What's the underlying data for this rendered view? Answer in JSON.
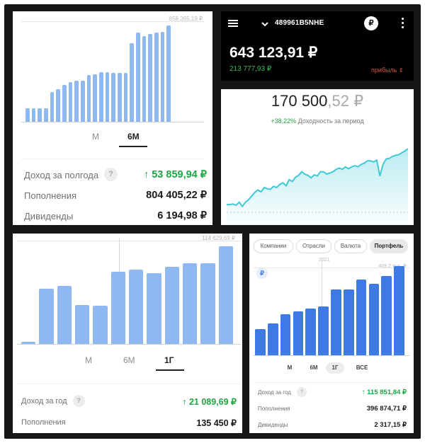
{
  "colors": {
    "bar": "#8fb8f2",
    "bar_dark": "#3d7ae4",
    "green": "#21a443",
    "line": "#3ec8d8",
    "profit_red": "#e0523f"
  },
  "panel1": {
    "max_label": "858 265,19 ₽",
    "periods": [
      "М",
      "6М"
    ],
    "active_period": "6М",
    "rows": [
      {
        "label": "Доход за полгода",
        "value": "53 859,94 ₽",
        "help": true,
        "green": true
      },
      {
        "label": "Пополнения",
        "value": "804 405,22 ₽"
      },
      {
        "label": "Дивиденды",
        "value": "6 194,98 ₽"
      }
    ]
  },
  "panel2": {
    "menu_icon": "hamburger-icon",
    "dropdown_icon": "chevron-down-icon",
    "account": "489961B5NHE",
    "currency_icon": "ruble-icon",
    "more_icon": "dots-vertical-icon",
    "balance": "643 123,91 ₽",
    "profit_value": "213 777,93 ₽",
    "profit_label": "прибыль",
    "profit_toggle_icon": "swap-vertical-icon"
  },
  "panel3": {
    "amount_main": "170 500",
    "amount_fraction": ",52 ₽",
    "yield_value": "+38,22%",
    "yield_label": "Доходность за период"
  },
  "panel4": {
    "max_label": "114 629,69 ₽",
    "periods": [
      "М",
      "6М",
      "1Г"
    ],
    "active_period": "1Г",
    "rows": [
      {
        "label": "Доход за год",
        "value": "21 089,69 ₽",
        "help": true,
        "green": true
      },
      {
        "label": "Пополнения",
        "value": "135 450 ₽"
      }
    ]
  },
  "panel5": {
    "chips": [
      "Компании",
      "Отрасли",
      "Валюта",
      "Портфель"
    ],
    "active_chip": "Портфель",
    "currency_icon": "ruble-icon",
    "year_label": "2021",
    "max_label": "409,2 тыс. ₽",
    "periods": [
      "М",
      "6М",
      "1Г",
      "ВСЕ"
    ],
    "active_period": "1Г",
    "rows": [
      {
        "label": "Доход за год",
        "value": "115 851,84 ₽",
        "help": true,
        "green": true
      },
      {
        "label": "Пополнения",
        "value": "396 874,71 ₽"
      },
      {
        "label": "Дивиденды",
        "value": "2 317,15 ₽"
      }
    ]
  },
  "chart_data": [
    {
      "type": "bar",
      "series": [
        {
          "values": [
            120,
            120,
            120,
            120,
            265,
            290,
            325,
            355,
            365,
            365,
            415,
            420,
            440,
            440,
            435,
            435,
            435,
            700,
            790,
            760,
            780,
            795,
            800,
            858
          ]
        }
      ],
      "ylim": [
        0,
        880
      ],
      "annotation": "858 265,19 ₽"
    },
    {
      "type": "line",
      "series": [
        {
          "values": [
            0.08,
            0.08,
            0.09,
            0.07,
            0.12,
            0.05,
            0.12,
            0.16,
            0.22,
            0.28,
            0.32,
            0.29,
            0.36,
            0.34,
            0.33,
            0.38,
            0.36,
            0.41,
            0.44,
            0.39,
            0.49,
            0.46,
            0.53,
            0.56,
            0.62,
            0.58,
            0.56,
            0.52,
            0.57,
            0.55,
            0.62,
            0.62,
            0.58,
            0.6,
            0.62,
            0.66,
            0.68,
            0.66,
            0.7,
            0.67,
            0.7,
            0.72,
            0.7,
            0.74,
            0.76,
            0.8,
            0.8,
            0.78,
            0.81,
            0.55,
            0.74,
            0.83,
            0.84,
            0.87,
            0.89,
            0.9,
            0.93,
            0.96,
            1.0
          ]
        }
      ]
    },
    {
      "type": "bar",
      "series": [
        {
          "values": [
            2,
            52,
            55,
            37,
            36,
            68,
            70,
            67,
            73,
            76,
            76,
            92
          ]
        }
      ],
      "ylim": [
        0,
        100
      ],
      "annotation": "114 629,69 ₽"
    },
    {
      "type": "bar",
      "series": [
        {
          "values": [
            37,
            45,
            58,
            62,
            67,
            70,
            94,
            94,
            108,
            102,
            113,
            127
          ]
        }
      ],
      "ylim": [
        0,
        135
      ],
      "annotation": "409,2 тыс. ₽"
    }
  ]
}
